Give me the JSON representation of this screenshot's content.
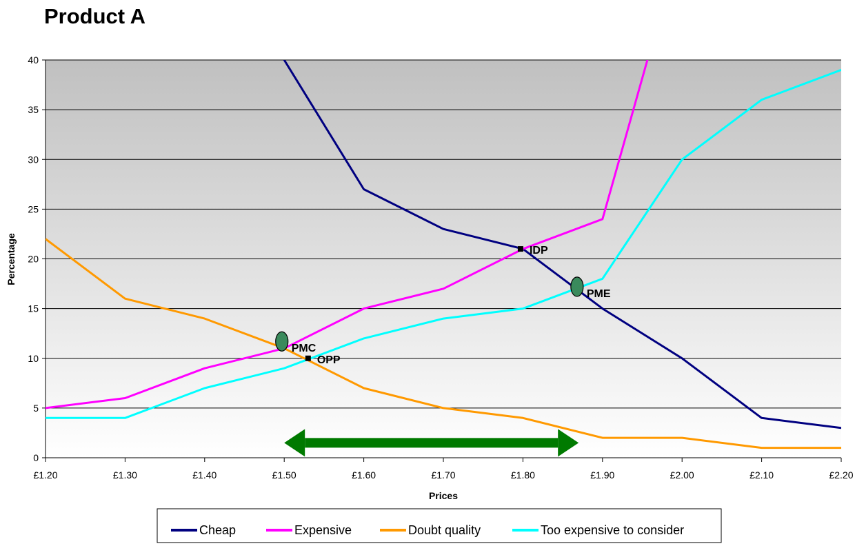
{
  "chart_data": {
    "type": "line",
    "title": "Product A",
    "xlabel": "Prices",
    "ylabel": "Percentage",
    "x": [
      1.2,
      1.3,
      1.4,
      1.5,
      1.6,
      1.7,
      1.8,
      1.9,
      2.0,
      2.1,
      2.2
    ],
    "x_tick_labels": [
      "£1.20",
      "£1.30",
      "£1.40",
      "£1.50",
      "£1.60",
      "£1.70",
      "£1.80",
      "£1.90",
      "£2.00",
      "£2.10",
      "£2.20"
    ],
    "ylim": [
      0,
      40
    ],
    "y_ticks": [
      0,
      5,
      10,
      15,
      20,
      25,
      30,
      35,
      40
    ],
    "grid": true,
    "legend_position": "bottom",
    "background": "gradient-grey",
    "series": [
      {
        "name": "Cheap",
        "color": "#000080",
        "points": [
          [
            1.493,
            41
          ],
          [
            1.5,
            40
          ],
          [
            1.6,
            27
          ],
          [
            1.7,
            23
          ],
          [
            1.8,
            21
          ],
          [
            1.9,
            15
          ],
          [
            2.0,
            10
          ],
          [
            2.1,
            4
          ],
          [
            2.2,
            3
          ]
        ]
      },
      {
        "name": "Expensive",
        "color": "#FF00FF",
        "points": [
          [
            1.2,
            5
          ],
          [
            1.3,
            6
          ],
          [
            1.4,
            9
          ],
          [
            1.5,
            11
          ],
          [
            1.6,
            15
          ],
          [
            1.7,
            17
          ],
          [
            1.8,
            21
          ],
          [
            1.9,
            24
          ],
          [
            1.96,
            41
          ]
        ]
      },
      {
        "name": "Doubt quality",
        "color": "#FF9900",
        "points": [
          [
            1.2,
            22
          ],
          [
            1.3,
            16
          ],
          [
            1.4,
            14
          ],
          [
            1.5,
            11
          ],
          [
            1.6,
            7
          ],
          [
            1.7,
            5
          ],
          [
            1.8,
            4
          ],
          [
            1.9,
            2
          ],
          [
            2.0,
            2
          ],
          [
            2.1,
            1
          ],
          [
            2.2,
            1
          ]
        ]
      },
      {
        "name": "Too expensive to consider",
        "color": "#00FFFF",
        "points": [
          [
            1.2,
            4
          ],
          [
            1.3,
            4
          ],
          [
            1.4,
            7
          ],
          [
            1.5,
            9
          ],
          [
            1.6,
            12
          ],
          [
            1.7,
            14
          ],
          [
            1.8,
            15
          ],
          [
            1.9,
            18
          ],
          [
            2.0,
            30
          ],
          [
            2.1,
            36
          ],
          [
            2.2,
            39
          ]
        ]
      }
    ],
    "annotations": [
      {
        "label": "PMC",
        "x": 1.497,
        "y": 11.7,
        "marker": "ellipse",
        "color": "#3a8a5c"
      },
      {
        "label": "PME",
        "x": 1.868,
        "y": 17.2,
        "marker": "ellipse",
        "color": "#3a8a5c"
      },
      {
        "label": "IDP",
        "x": 1.797,
        "y": 21,
        "marker": "square",
        "color": "#000000"
      },
      {
        "label": "OPP",
        "x": 1.53,
        "y": 10,
        "marker": "square",
        "color": "#000000"
      }
    ],
    "range_arrow": {
      "from": 1.5,
      "to": 1.87,
      "y": 1.5,
      "color": "#007a00"
    }
  }
}
